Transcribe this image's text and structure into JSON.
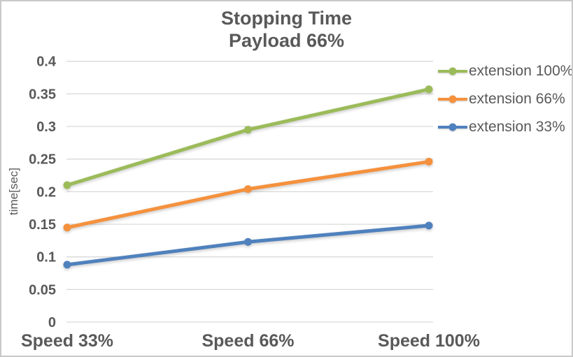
{
  "chart_data": {
    "type": "line",
    "title": "Stopping Time",
    "subtitle": "Payload 66%",
    "ylabel": "time[sec]",
    "xlabel": "",
    "categories": [
      "Speed 33%",
      "Speed 66%",
      "Speed 100%"
    ],
    "series": [
      {
        "name": "extension 100%",
        "color": "#9BBB59",
        "values": [
          0.21,
          0.295,
          0.357
        ]
      },
      {
        "name": "extension 66%",
        "color": "#F5913D",
        "values": [
          0.145,
          0.204,
          0.246
        ]
      },
      {
        "name": "extension 33%",
        "color": "#4F81BD",
        "values": [
          0.088,
          0.123,
          0.148
        ]
      }
    ],
    "ylim": [
      0,
      0.4
    ],
    "ytick_step": 0.05,
    "grid": true,
    "legend_position": "right"
  },
  "colors": {
    "text": "#595959",
    "gridline": "#D9D9D9",
    "border": "#C9C9C9",
    "background": "#FFFFFF"
  }
}
